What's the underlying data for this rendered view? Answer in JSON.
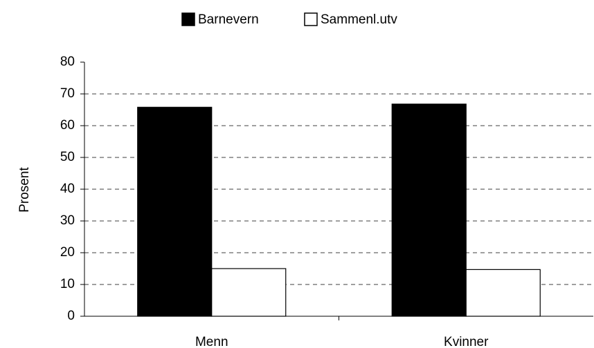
{
  "chart_data": {
    "type": "bar",
    "categories": [
      "Menn",
      "Kvinner"
    ],
    "series": [
      {
        "name": "Barnevern",
        "color": "#000000",
        "values": [
          65.8,
          66.8
        ]
      },
      {
        "name": "Sammenl.utv",
        "color": "#ffffff",
        "values": [
          15,
          14.7
        ]
      }
    ],
    "y_label": "Prosent",
    "ylim": [
      0,
      80
    ],
    "yticks": [
      0,
      10,
      20,
      30,
      40,
      50,
      60,
      70,
      80
    ],
    "grid": true,
    "legend": "top"
  }
}
